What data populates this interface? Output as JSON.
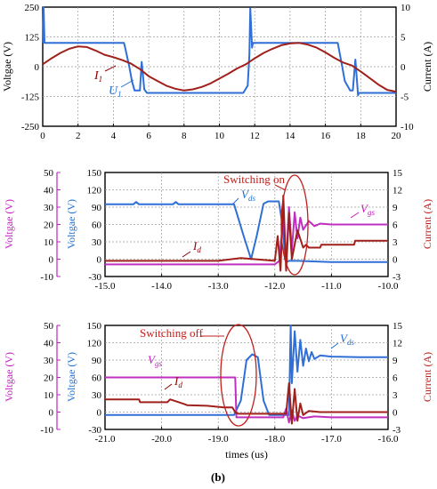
{
  "chart_data": [
    {
      "type": "line",
      "panel": "top",
      "x_ticks": [
        "0",
        "2",
        "4",
        "6",
        "8",
        "10",
        "12",
        "14",
        "16",
        "18",
        "20"
      ],
      "xlim": [
        0,
        20
      ],
      "left_axis": {
        "label": "Voltgae (V)",
        "ticks": [
          "250",
          "125",
          "0",
          "-125",
          "-250"
        ],
        "ylim": [
          -250,
          250
        ],
        "color": "#000000"
      },
      "right_axis": {
        "label": "Current (A)",
        "ticks": [
          "10",
          "5",
          "0",
          "-5",
          "-10"
        ],
        "ylim": [
          -10,
          10
        ],
        "color": "#000000"
      },
      "annotations": [
        {
          "text": "I",
          "sub": "1",
          "color": "#8b0000"
        },
        {
          "text": "U",
          "sub": "1",
          "color": "#1f6fd1"
        }
      ],
      "grid": true,
      "series": [
        {
          "name": "U1",
          "axis": "left",
          "color": "#2f6fd6",
          "x": [
            0,
            0.05,
            0.1,
            4.6,
            4.65,
            4.9,
            5.05,
            5.2,
            5.5,
            5.6,
            5.75,
            5.9,
            11.35,
            11.6,
            11.7,
            11.75,
            11.85,
            11.9,
            12.0,
            16.7,
            16.75,
            16.95,
            17.1,
            17.4,
            17.55,
            17.7,
            17.85,
            17.9,
            20
          ],
          "y": [
            100,
            250,
            100,
            100,
            85,
            0,
            -60,
            -100,
            -100,
            20,
            -95,
            -110,
            -110,
            -80,
            50,
            245,
            80,
            100,
            100,
            100,
            80,
            0,
            -60,
            -100,
            -100,
            30,
            -120,
            -110,
            -110
          ]
        },
        {
          "name": "I1",
          "axis": "right",
          "color": "#a0201c",
          "x": [
            0,
            0.5,
            1,
            1.5,
            2,
            2.5,
            3,
            3.5,
            4,
            4.5,
            5,
            5.5,
            6,
            6.5,
            7,
            7.5,
            8,
            8.5,
            9,
            9.5,
            10,
            10.5,
            11,
            11.5,
            12,
            12.5,
            13,
            13.5,
            14,
            14.5,
            15,
            15.5,
            16,
            16.5,
            17,
            17.5,
            18,
            18.5,
            19,
            19.5,
            20
          ],
          "y": [
            0.4,
            1.4,
            2.3,
            3.0,
            3.4,
            3.3,
            2.7,
            2.0,
            1.6,
            1.1,
            0.5,
            -0.4,
            -1.6,
            -2.4,
            -3.2,
            -3.7,
            -4.0,
            -3.8,
            -3.4,
            -2.8,
            -2.0,
            -1.2,
            -0.3,
            0.4,
            1.4,
            2.3,
            3.0,
            3.6,
            3.9,
            4.0,
            3.7,
            3.2,
            2.4,
            1.5,
            0.7,
            0.2,
            -0.8,
            -1.9,
            -3.0,
            -3.9,
            -4.2
          ]
        }
      ]
    },
    {
      "type": "line",
      "panel": "middle",
      "x_ticks": [
        "-15.0",
        "-14.0",
        "-13.0",
        "-12.0",
        "-11.0",
        "-10.0"
      ],
      "xlim": [
        -15,
        -10
      ],
      "left_axis": {
        "label": "Voltgae (V)",
        "ticks": [
          "150",
          "120",
          "90",
          "60",
          "30",
          "0",
          "-30"
        ],
        "ylim": [
          -30,
          150
        ],
        "color": "#1f6fd1"
      },
      "outer_axis": {
        "label": "Voltgae (V)",
        "ticks": [
          "50",
          "40",
          "30",
          "20",
          "10",
          "0",
          "-10"
        ],
        "ylim": [
          -10,
          50
        ],
        "color": "#c020c0"
      },
      "right_axis": {
        "label": "Current (A)",
        "ticks": [
          "15",
          "12",
          "9",
          "6",
          "3",
          "0",
          "-3"
        ],
        "ylim": [
          -3,
          15
        ],
        "color": "#c0201c"
      },
      "annotations": [
        {
          "text": "Switching on",
          "color": "#c0201c"
        },
        {
          "text": "V",
          "sub": "ds",
          "color": "#1f6fd1"
        },
        {
          "text": "V",
          "sub": "gs",
          "color": "#c020c0"
        },
        {
          "text": "I",
          "sub": "d",
          "color": "#8b0000"
        }
      ],
      "grid": true,
      "series": [
        {
          "name": "Vds",
          "axis": "left",
          "color": "#2f6fd6",
          "x": [
            -15,
            -14.5,
            -14.45,
            -14.4,
            -13.8,
            -13.75,
            -13.7,
            -12.72,
            -12.55,
            -12.42,
            -12.32,
            -12.2,
            -12.12,
            -11.93,
            -11.85,
            -11.82,
            -11.8,
            -11.75,
            -11.6,
            -11.0,
            -10.0
          ],
          "y": [
            95,
            95,
            99,
            95,
            95,
            99,
            95,
            95,
            40,
            0,
            40,
            96,
            100,
            100,
            50,
            0,
            -5,
            -3,
            -3,
            -5,
            -5
          ]
        },
        {
          "name": "Vgs",
          "axis": "outer",
          "color": "#c030c0",
          "x": [
            -15,
            -12.0,
            -11.92,
            -11.85,
            -11.8,
            -11.75,
            -11.7,
            -11.65,
            -11.6,
            -11.55,
            -11.5,
            -11.4,
            -11.3,
            -11.2,
            -11.0,
            -10.0
          ],
          "y": [
            -3,
            -3,
            -1,
            25,
            -2,
            30,
            5,
            27,
            12,
            24,
            17,
            22,
            19,
            20.5,
            20,
            20
          ]
        },
        {
          "name": "Id",
          "axis": "right",
          "color": "#a0201c",
          "x": [
            -15,
            -14.0,
            -13.0,
            -12.6,
            -12.0,
            -11.95,
            -11.9,
            -11.85,
            -11.8,
            -11.75,
            -11.7,
            -11.6,
            -11.5,
            -11.45,
            -11.4,
            -11.2,
            -11.18,
            -10.6,
            -10.58,
            -10.0
          ],
          "y": [
            -0.3,
            -0.3,
            -0.3,
            0.2,
            -0.3,
            4,
            -2,
            11,
            -2,
            8,
            0,
            5,
            2,
            2.5,
            2,
            2,
            2.5,
            2.5,
            3.2,
            3.2
          ]
        }
      ]
    },
    {
      "type": "line",
      "panel": "bottom",
      "x_ticks": [
        "-21.0",
        "-20.0",
        "-19.0",
        "-18.0",
        "-17.0",
        "-16.0"
      ],
      "xlim": [
        -21,
        -16
      ],
      "xlabel": "times (us)",
      "left_axis": {
        "label": "Voltgae (V)",
        "ticks": [
          "150",
          "120",
          "90",
          "60",
          "30",
          "0",
          "-30"
        ],
        "ylim": [
          -30,
          150
        ],
        "color": "#1f6fd1"
      },
      "outer_axis": {
        "label": "Voltgae (V)",
        "ticks": [
          "50",
          "40",
          "30",
          "20",
          "10",
          "0",
          "-10"
        ],
        "ylim": [
          -10,
          50
        ],
        "color": "#c020c0"
      },
      "right_axis": {
        "label": "Current (A)",
        "ticks": [
          "15",
          "12",
          "9",
          "6",
          "3",
          "0",
          "-3"
        ],
        "ylim": [
          -3,
          15
        ],
        "color": "#c0201c"
      },
      "annotations": [
        {
          "text": "Switching off",
          "color": "#c0201c"
        },
        {
          "text": "V",
          "sub": "ds",
          "color": "#1f6fd1"
        },
        {
          "text": "V",
          "sub": "gs",
          "color": "#c020c0"
        },
        {
          "text": "I",
          "sub": "d",
          "color": "#8b0000"
        }
      ],
      "grid": true,
      "series": [
        {
          "name": "Vds",
          "axis": "left",
          "color": "#2f6fd6",
          "x": [
            -21,
            -18.72,
            -18.6,
            -18.5,
            -18.4,
            -18.3,
            -18.2,
            -18.1,
            -17.75,
            -17.72,
            -17.7,
            -17.65,
            -17.6,
            -17.55,
            -17.5,
            -17.45,
            -17.4,
            -17.35,
            -17.3,
            -17.2,
            -17.0,
            -16.5,
            -16.0
          ],
          "y": [
            -5,
            -5,
            20,
            90,
            100,
            95,
            20,
            -5,
            -5,
            150,
            50,
            140,
            70,
            125,
            80,
            110,
            88,
            104,
            92,
            98,
            96,
            95,
            95
          ]
        },
        {
          "name": "Vgs",
          "axis": "outer",
          "color": "#c030c0",
          "x": [
            -21,
            -18.7,
            -18.68,
            -18.0,
            -17.85,
            -17.8,
            -17.75,
            -17.7,
            -17.65,
            -17.6,
            -17.5,
            -17.3,
            -17.0,
            -16.0
          ],
          "y": [
            20,
            20,
            -3,
            -3,
            -3,
            2,
            -6,
            1,
            -5,
            -2,
            -3.5,
            -2.5,
            -3,
            -3
          ]
        },
        {
          "name": "Id",
          "axis": "right",
          "color": "#a0201c",
          "x": [
            -21,
            -20.4,
            -20.38,
            -19.9,
            -19.85,
            -19.6,
            -19.55,
            -19.2,
            -18.9,
            -18.75,
            -18.7,
            -18.65,
            -17.8,
            -17.75,
            -17.7,
            -17.65,
            -17.6,
            -17.55,
            -17.5,
            -17.4,
            -17.2,
            -16.0
          ],
          "y": [
            2.2,
            2.2,
            1.7,
            1.7,
            2.2,
            1.4,
            1.2,
            1.1,
            0.8,
            0.8,
            0,
            -0.3,
            -0.3,
            5,
            -2,
            4,
            -1.5,
            1.5,
            -0.5,
            0.2,
            0,
            0
          ]
        }
      ]
    }
  ],
  "caption": "(b)"
}
